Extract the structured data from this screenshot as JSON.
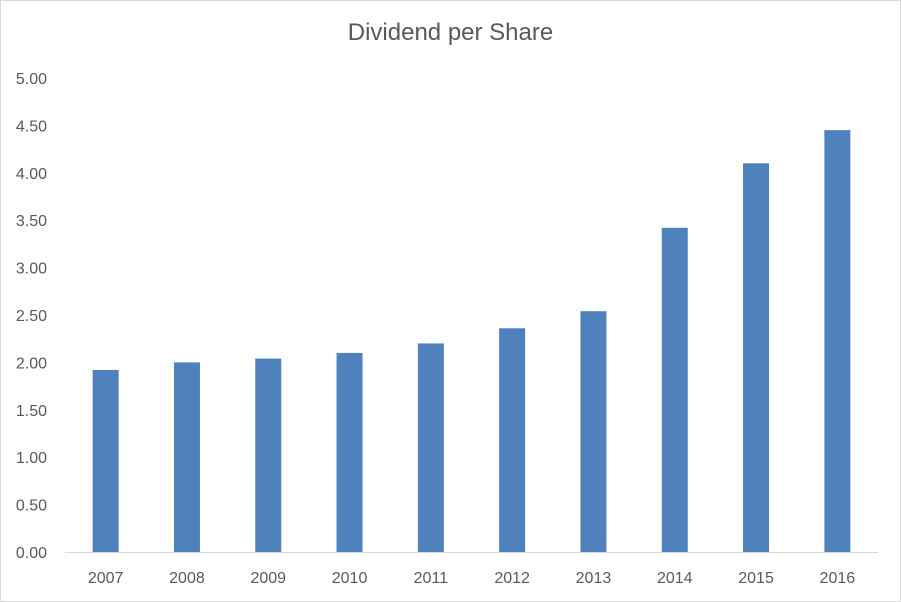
{
  "chart_data": {
    "type": "bar",
    "title": "Dividend per Share",
    "xlabel": "",
    "ylabel": "",
    "categories": [
      "2007",
      "2008",
      "2009",
      "2010",
      "2011",
      "2012",
      "2013",
      "2014",
      "2015",
      "2016"
    ],
    "values": [
      1.92,
      2.0,
      2.04,
      2.1,
      2.2,
      2.36,
      2.54,
      3.42,
      4.1,
      4.45
    ],
    "ylim": [
      0,
      5
    ],
    "yticks": [
      "0.00",
      "0.50",
      "1.00",
      "1.50",
      "2.00",
      "2.50",
      "3.00",
      "3.50",
      "4.00",
      "4.50",
      "5.00"
    ],
    "grid": false,
    "legend": "none",
    "bar_color": "#4f81bd",
    "axis_color": "#d9d9d9",
    "text_color": "#595959"
  }
}
